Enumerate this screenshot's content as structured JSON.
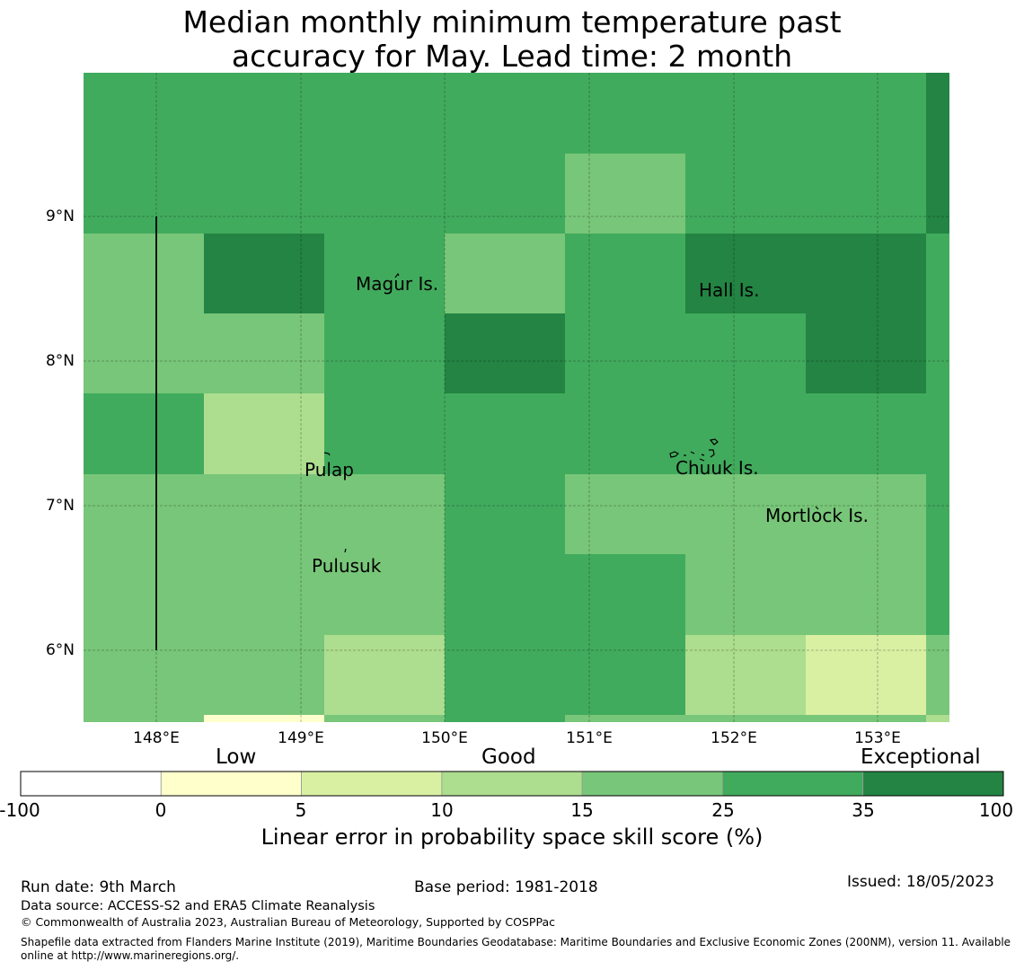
{
  "title": {
    "line1": "Median monthly minimum temperature past",
    "line2": "accuracy for May. Lead time: 2 month"
  },
  "colors": {
    "c0": "#ffffcc",
    "c5": "#d9f0a3",
    "c10": "#addd8e",
    "c15": "#78c679",
    "c25": "#41ab5d",
    "c35": "#238443",
    "white": "#ffffff"
  },
  "map": {
    "lat_labels": [
      "9°N",
      "8°N",
      "7°N",
      "6°N"
    ],
    "lon_labels": [
      "148°E",
      "149°E",
      "150°E",
      "151°E",
      "152°E",
      "153°E"
    ],
    "places": [
      {
        "name": "Magur Is."
      },
      {
        "name": "Hall Is."
      },
      {
        "name": "Pulap"
      },
      {
        "name": "Chuuk Is."
      },
      {
        "name": "Mortlock Is."
      },
      {
        "name": "Pulusuk"
      }
    ],
    "grid_skill": [
      [
        "c25",
        "c25",
        "c25",
        "c25",
        "c25",
        "c25",
        "c25",
        "c35"
      ],
      [
        "c25",
        "c25",
        "c25",
        "c25",
        "c15",
        "c25",
        "c25",
        "c35"
      ],
      [
        "c15",
        "c35",
        "c25",
        "c15",
        "c25",
        "c35",
        "c35",
        "c25"
      ],
      [
        "c15",
        "c15",
        "c25",
        "c35",
        "c25",
        "c25",
        "c35",
        "c25"
      ],
      [
        "c25",
        "c10",
        "c25",
        "c25",
        "c25",
        "c25",
        "c25",
        "c25"
      ],
      [
        "c15",
        "c15",
        "c15",
        "c25",
        "c15",
        "c15",
        "c15",
        "c25"
      ],
      [
        "c15",
        "c15",
        "c15",
        "c25",
        "c25",
        "c15",
        "c15",
        "c25"
      ],
      [
        "c15",
        "c15",
        "c10",
        "c25",
        "c25",
        "c10",
        "c5",
        "c15"
      ],
      [
        "c15",
        "c0",
        "c15",
        "c25",
        "c15",
        "c15",
        "c15",
        "c10"
      ]
    ]
  },
  "colorbar": {
    "categories": [
      "Low",
      "Good",
      "Exceptional"
    ],
    "ticks": [
      "-100",
      "0",
      "5",
      "10",
      "15",
      "25",
      "35",
      "100"
    ],
    "segments": [
      "white",
      "c0",
      "c5",
      "c10",
      "c15",
      "c25",
      "c35"
    ],
    "label": "Linear error in probability space skill score (%)"
  },
  "footer": {
    "run_date": "Run date: 9th March",
    "base_period": "Base period: 1981-2018",
    "issued": "Issued: 18/05/2023",
    "data_source": "Data source: ACCESS-S2 and ERA5 Climate Reanalysis",
    "copyright": "© Commonwealth of Australia 2023, Australian Bureau of Meteorology, Supported by COSPPac",
    "shapefile_line1": "Shapefile data extracted from Flanders Marine Institute (2019), Maritime Boundaries Geodatabase: Maritime Boundaries and Exclusive Economic Zones (200NM), version 11. Available",
    "shapefile_line2": "online at http://www.marineregions.org/."
  }
}
